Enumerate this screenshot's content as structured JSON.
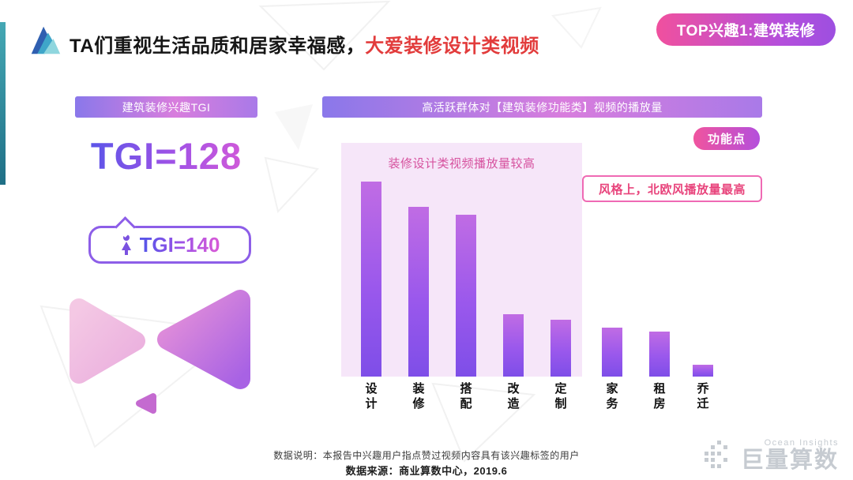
{
  "header": {
    "title_black": "TA们重视生活品质和居家幸福感，",
    "title_red": "大爱装修设计类视频",
    "top_badge": "TOP兴趣1:建筑装修"
  },
  "left_panel": {
    "header": "建筑装修兴趣TGI",
    "tgi_main": "TGI=128",
    "bubble_tgi": "TGI=140"
  },
  "right_panel": {
    "header": "高活跃群体对【建筑装修功能类】视频的播放量",
    "badge": "功能点",
    "chart_note": "装修设计类视频播放量较高",
    "callout": "风格上，北欧风播放量最高"
  },
  "chart_data": {
    "type": "bar",
    "title": "高活跃群体对【建筑装修功能类】视频的播放量",
    "categories": [
      "设计",
      "装修",
      "搭配",
      "改造",
      "定制",
      "家务",
      "租房",
      "乔迁"
    ],
    "values": [
      100,
      87,
      83,
      32,
      29,
      25,
      23,
      6
    ],
    "ylim": [
      0,
      100
    ],
    "grid": false,
    "highlighted_categories": [
      "设计",
      "装修",
      "搭配",
      "改造",
      "定制"
    ],
    "annotations": [
      "装修设计类视频播放量较高",
      "风格上，北欧风播放量最高"
    ]
  },
  "footer": {
    "note": "数据说明：本报告中兴趣用户指点赞过视频内容具有该兴趣标签的用户",
    "source": "数据来源：商业算数中心，2019.6"
  },
  "watermark": {
    "sub": "Ocean Insights",
    "brand": "巨量算数"
  },
  "colors": {
    "accent_red": "#e23c3c",
    "banner_gradient": [
      "#8a78ea",
      "#d87ddd",
      "#a97ae8"
    ],
    "badge_gradient": [
      "#f0509e",
      "#9d4fe0"
    ],
    "bar_gradient": [
      "#c06ce4",
      "#7e4ee8"
    ],
    "highlight_bg": "#f6e6f9",
    "callout_border": "#ef6ab4",
    "callout_text": "#e8447c",
    "tgi_gradient": [
      "#5b55e8",
      "#d45ad8"
    ],
    "teal_bar": [
      "#45a8b4",
      "#1f6f86"
    ]
  }
}
